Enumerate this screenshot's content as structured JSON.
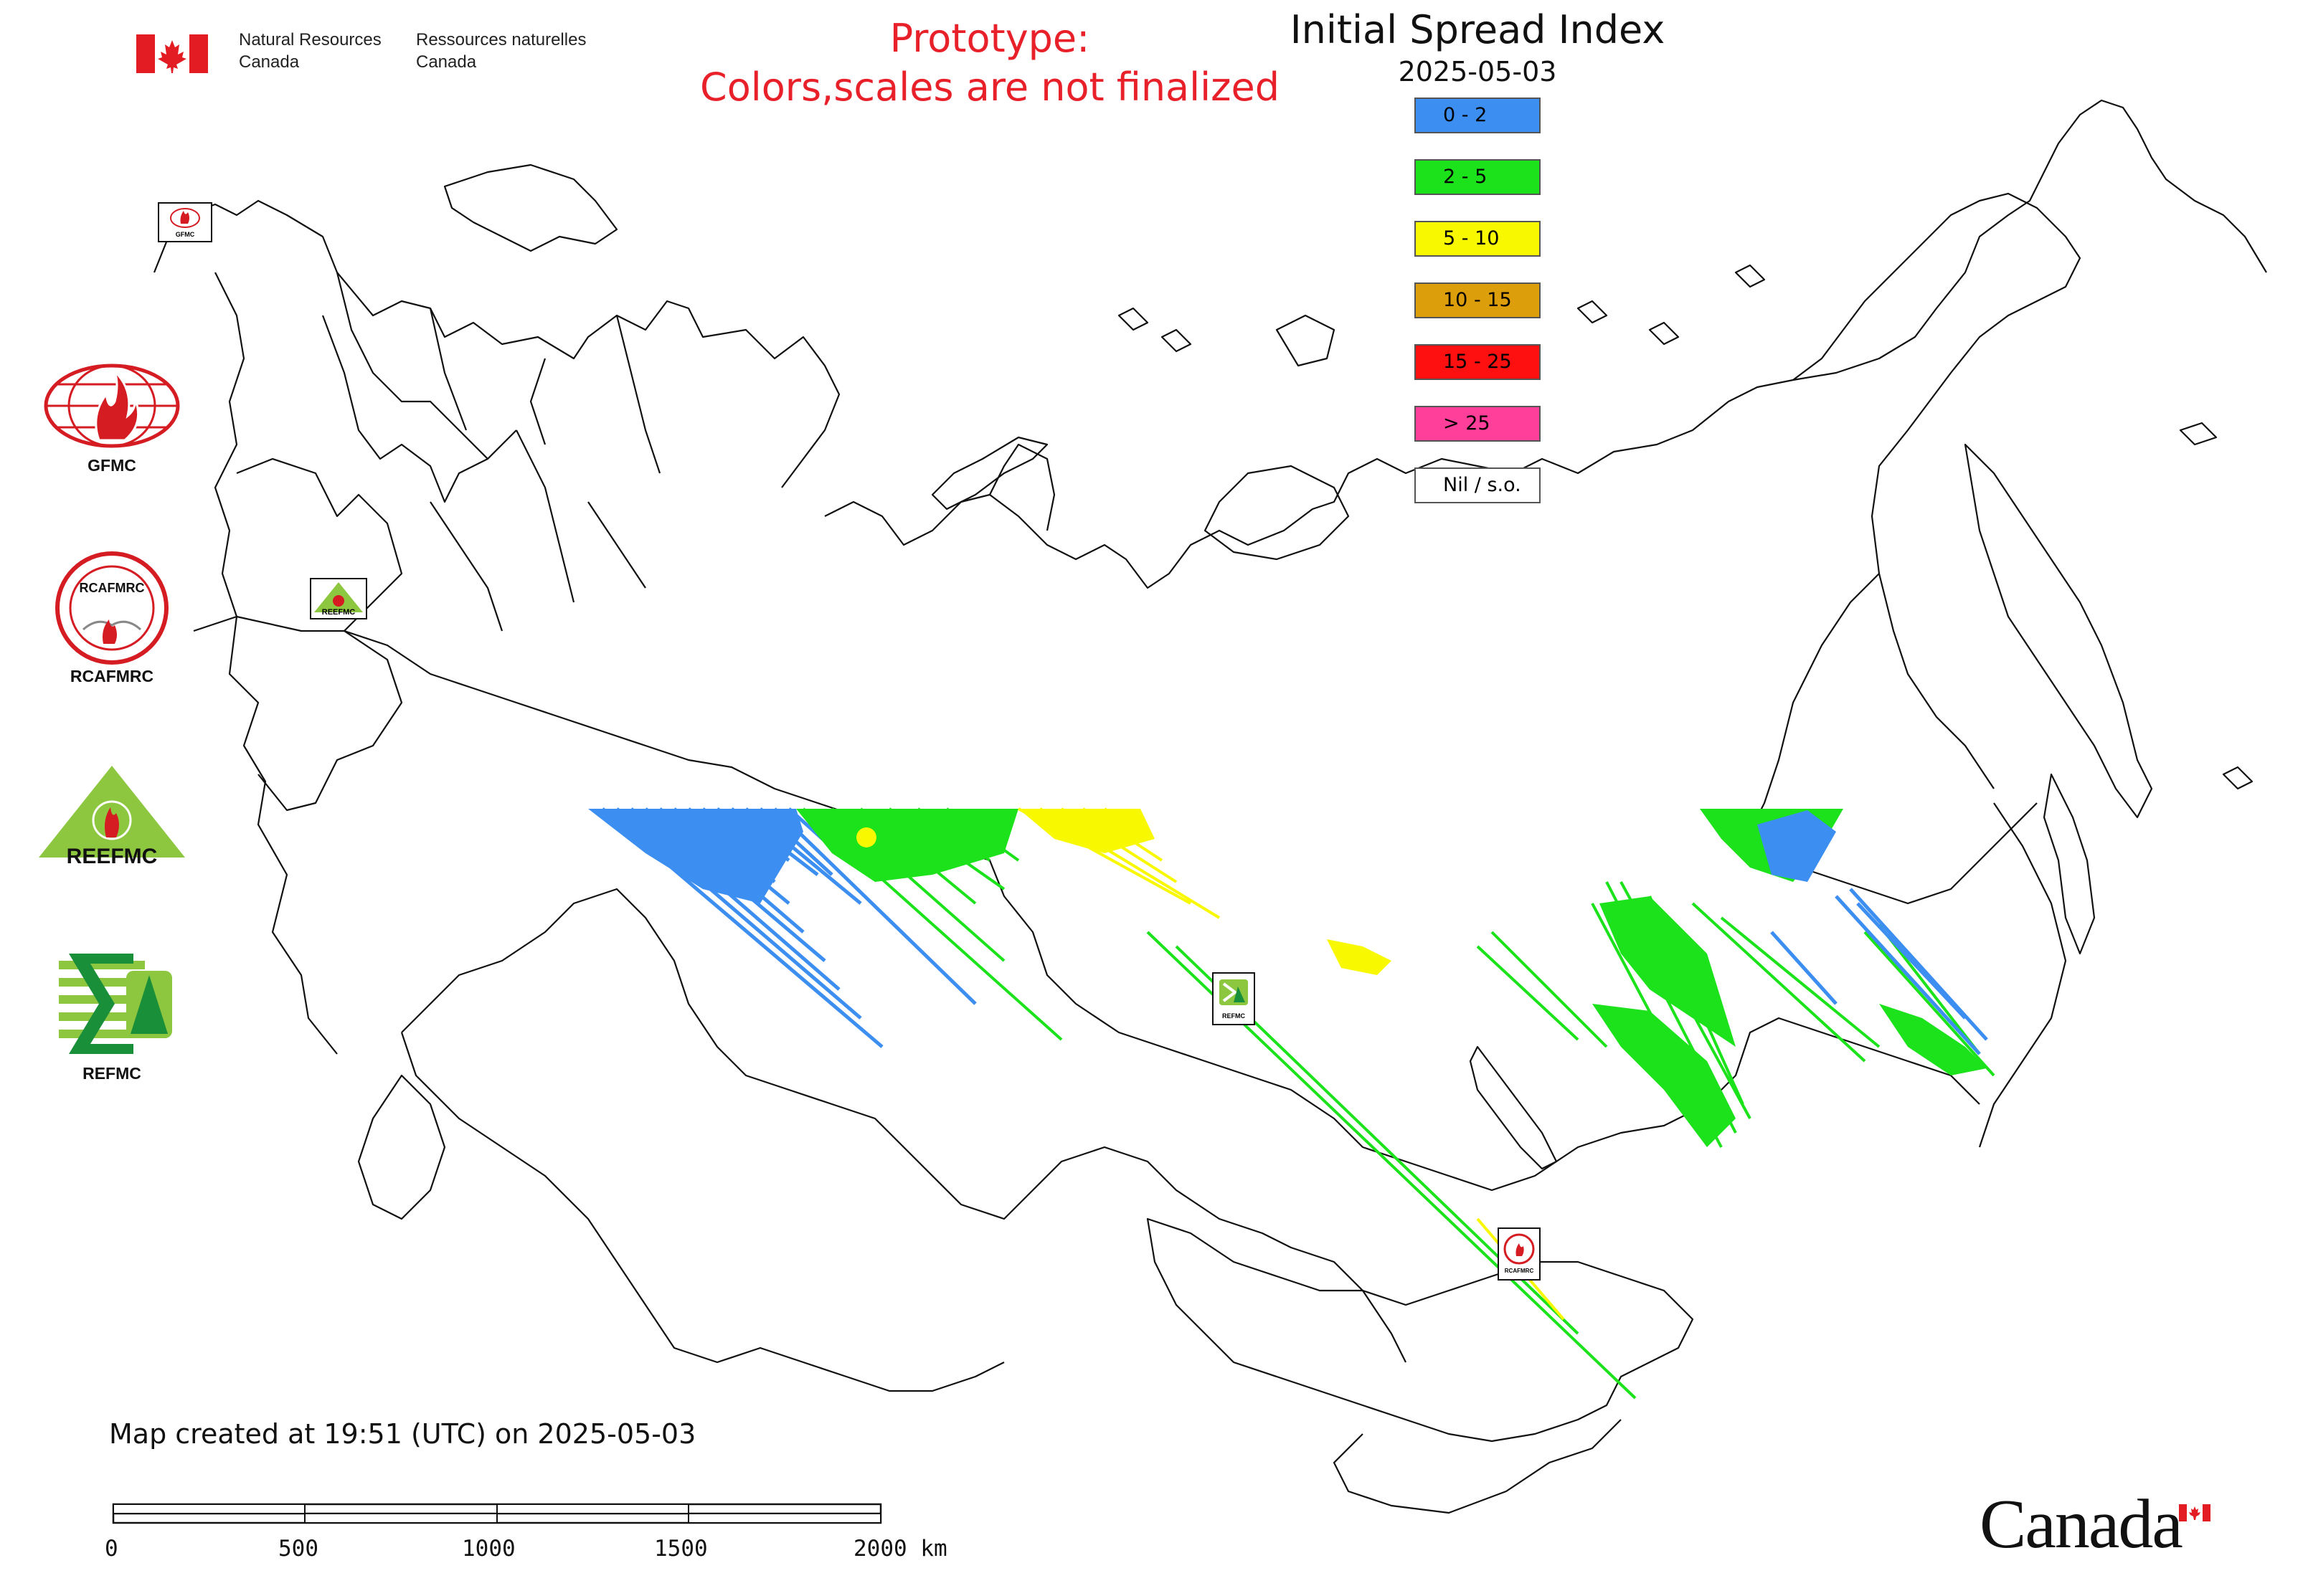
{
  "header": {
    "dept_en_line1": "Natural Resources",
    "dept_en_line2": "Canada",
    "dept_fr_line1": "Ressources naturelles",
    "dept_fr_line2": "Canada",
    "prototype_line1": "Prototype:",
    "prototype_line2": "Colors,scales are not finalized",
    "title": "Initial Spread Index",
    "date": "2025-05-03"
  },
  "legend": [
    {
      "label": "0 - 2",
      "color": "#3c8ef0"
    },
    {
      "label": "2 - 5",
      "color": "#1be21b"
    },
    {
      "label": "5 - 10",
      "color": "#f8f800"
    },
    {
      "label": "10 - 15",
      "color": "#dc9e0a"
    },
    {
      "label": "15 - 25",
      "color": "#ff1010"
    },
    {
      "label": "> 25",
      "color": "#ff3f9a"
    },
    {
      "label": "Nil / s.o.",
      "color": "#ffffff"
    }
  ],
  "logos": {
    "gfmc": "GFMC",
    "rcafmrc": "RCAFMRC",
    "rcafmrc_ring": "RCAFMRC",
    "reefmc": "REEFMC",
    "refmc": "REFMC"
  },
  "map_markers": [
    "GFMC",
    "REEFMC",
    "REFMC",
    "RCAFMRC"
  ],
  "footer": {
    "created": "Map created at 19:51 (UTC) on 2025-05-03",
    "scale_ticks": [
      "0",
      "500",
      "1000",
      "1500",
      "2000 km"
    ],
    "wordmark": "Canada"
  },
  "colors": {
    "prototype_text": "#e8202a",
    "flag_red": "#e31c23",
    "outline": "#111111"
  }
}
